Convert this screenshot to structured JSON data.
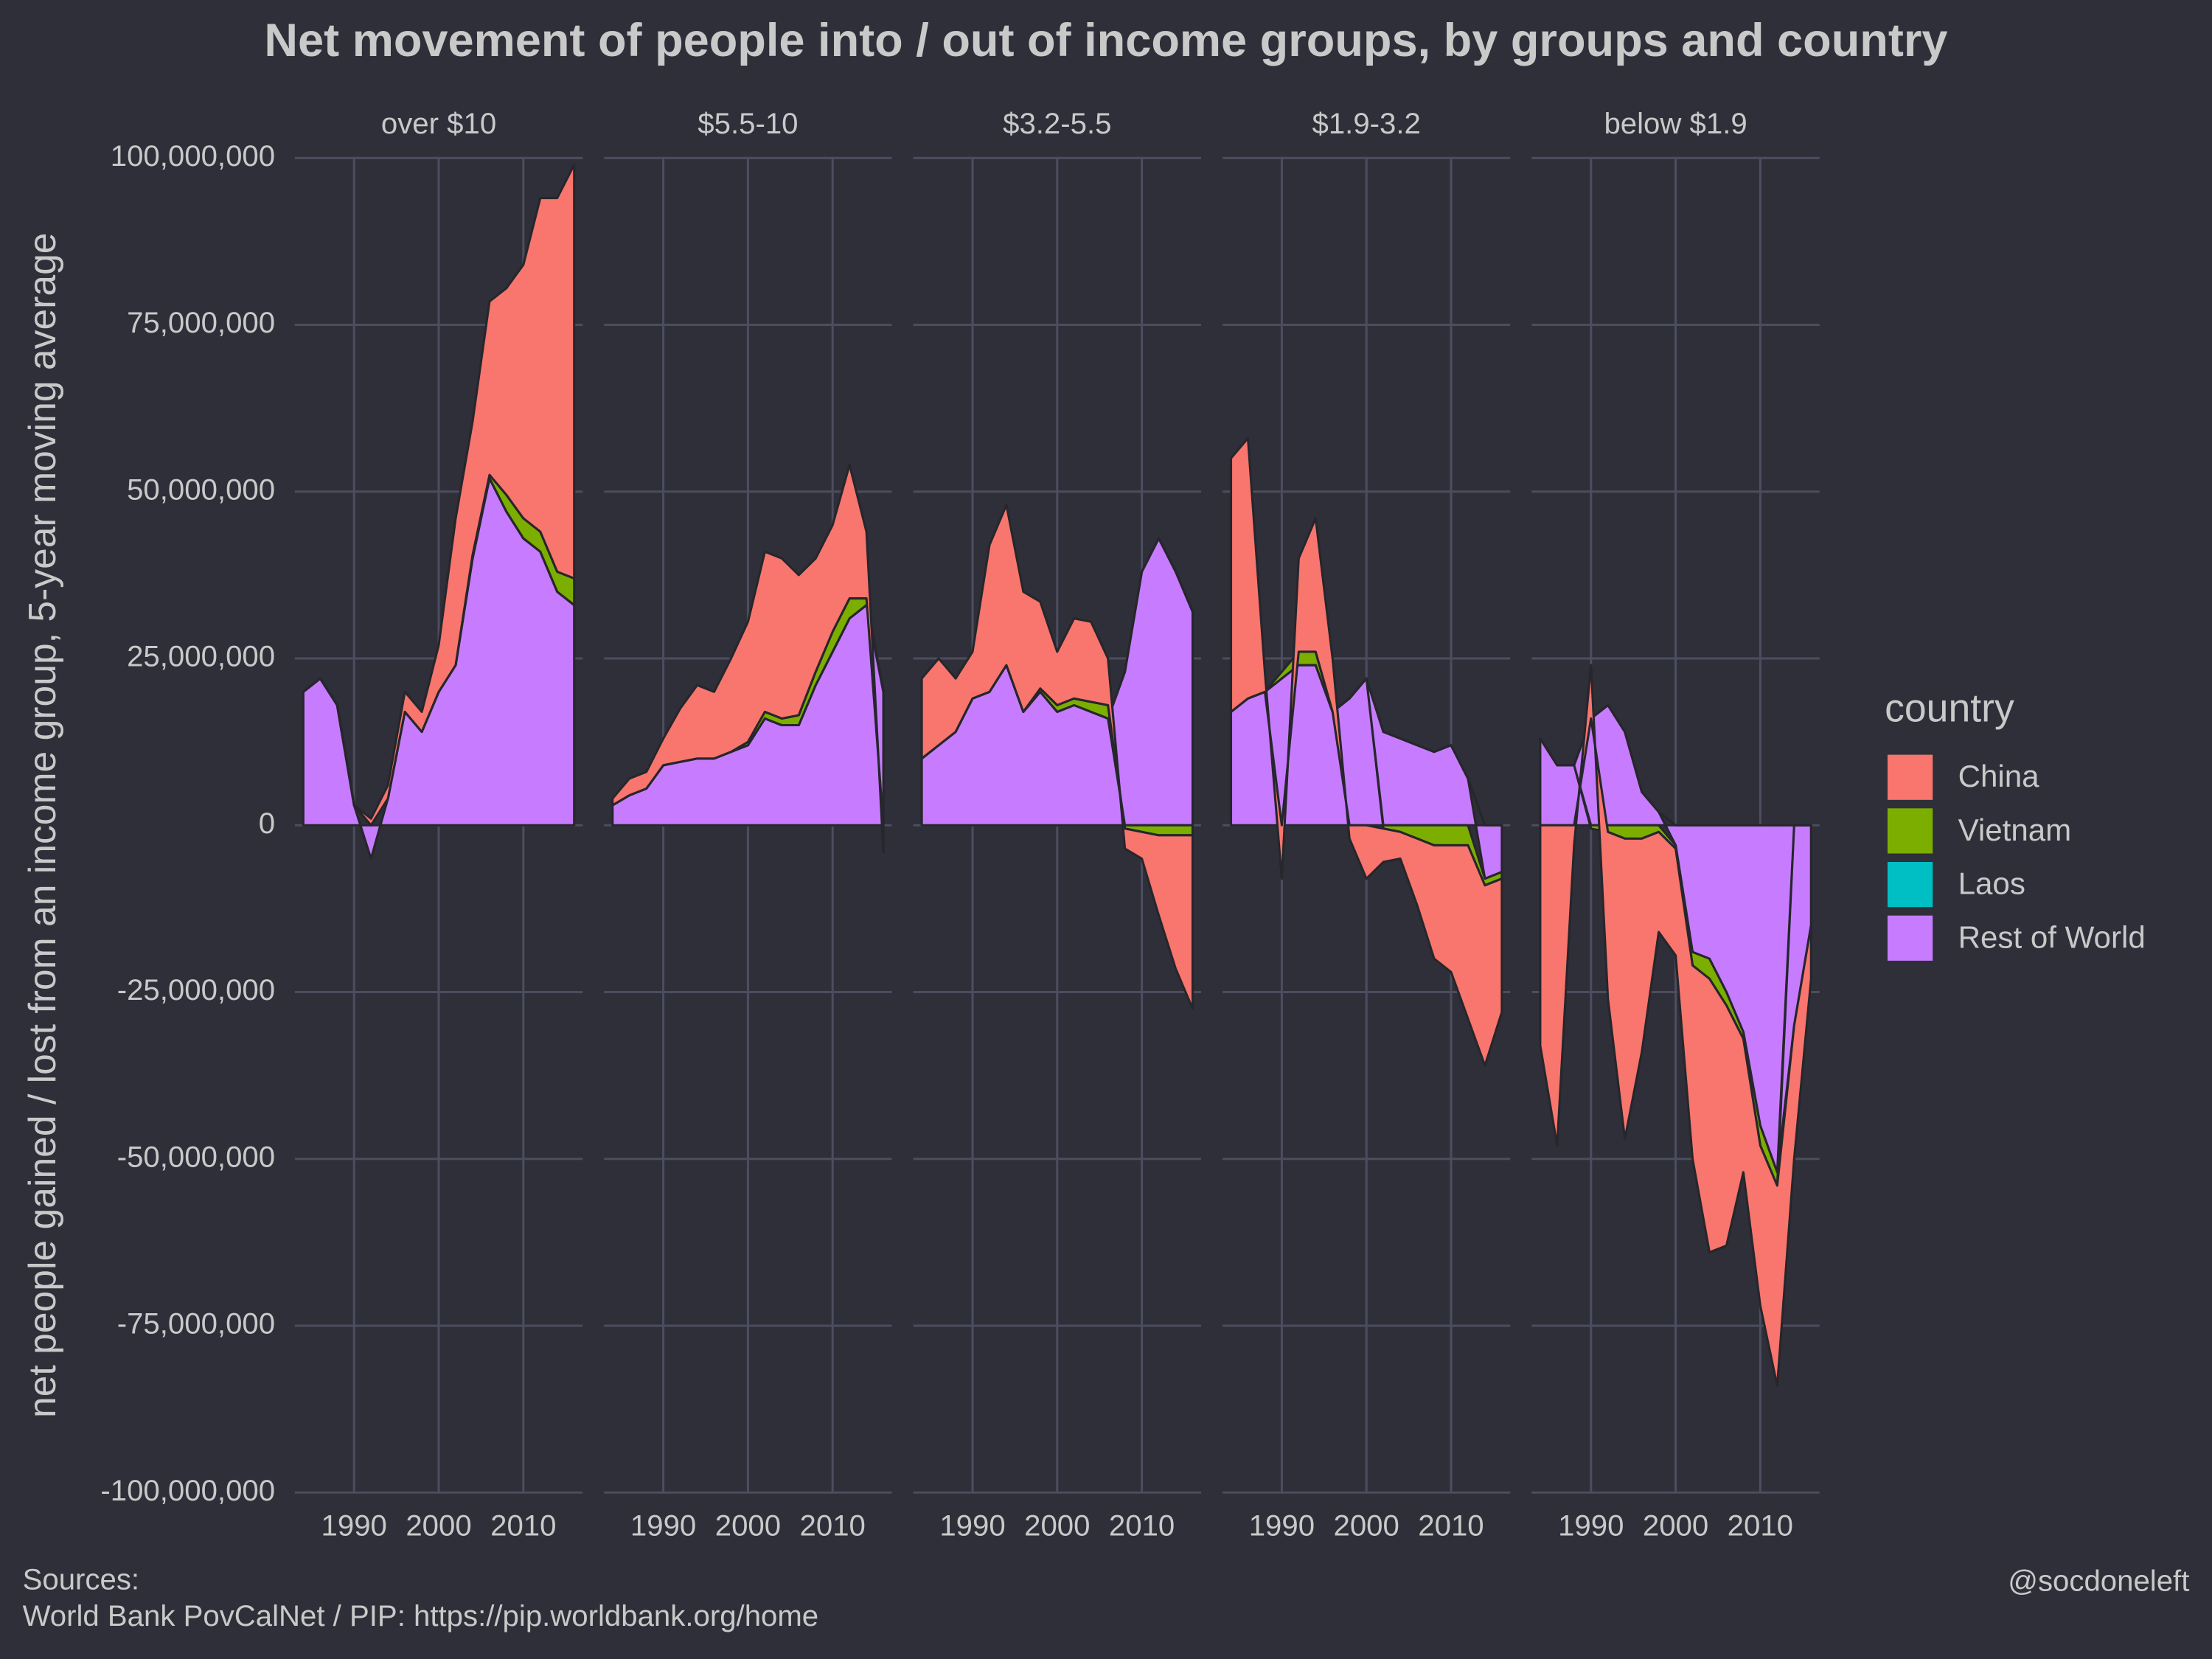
{
  "chart_data": {
    "type": "area",
    "title": "Net movement of people into / out of income groups, by groups and country",
    "y_label": "net people gained / lost from an income group, 5-year moving average",
    "legend_title": "country",
    "sources_heading": "Sources:",
    "sources": "World Bank PovCalNet / PIP: https://pip.worldbank.org/home",
    "credit": "@socdoneleft",
    "xlim": [
      1983,
      2017
    ],
    "xticks": [
      1990,
      2000,
      2010
    ],
    "ylim": [
      -100000000,
      100000000
    ],
    "yticks": [
      {
        "value": -100000000,
        "label": "-100,000,000"
      },
      {
        "value": -75000000,
        "label": "-75,000,000"
      },
      {
        "value": -50000000,
        "label": "-50,000,000"
      },
      {
        "value": -25000000,
        "label": "-25,000,000"
      },
      0,
      {
        "value": 25000000,
        "label": "25,000,000"
      },
      {
        "value": 50000000,
        "label": "50,000,000"
      },
      {
        "value": 75000000,
        "label": "75,000,000"
      },
      {
        "value": 100000000,
        "label": "100,000,000"
      }
    ],
    "grid": true,
    "series": [
      {
        "name": "China",
        "color": "#f8766d"
      },
      {
        "name": "Vietnam",
        "color": "#7cae00"
      },
      {
        "name": "Laos",
        "color": "#00bfc4"
      },
      {
        "name": "Rest of World",
        "color": "#c77cff"
      }
    ],
    "x": [
      1984,
      1986,
      1988,
      1990,
      1992,
      1994,
      1996,
      1998,
      2000,
      2002,
      2004,
      2006,
      2008,
      2010,
      2012,
      2014,
      2016
    ],
    "facets": [
      {
        "title": "over $10",
        "values": [
          [
            0,
            0,
            0,
            0,
            1000000,
            2000000,
            3000000,
            3000000,
            7000000,
            22000000,
            20000000,
            26000000,
            31000000,
            38000000,
            50000000,
            56000000,
            62000000
          ],
          [
            0,
            0,
            0,
            0,
            0,
            0,
            0,
            0,
            0,
            0,
            500000,
            500000,
            2500000,
            3000000,
            3000000,
            3000000,
            4000000
          ],
          [
            0,
            0,
            0,
            0,
            0,
            0,
            0,
            0,
            0,
            0,
            0,
            0,
            0,
            0,
            0,
            0,
            0
          ],
          [
            20000000,
            22000000,
            18000000,
            3000000,
            -5000000,
            4000000,
            17000000,
            14000000,
            20000000,
            24000000,
            40000000,
            52000000,
            47000000,
            43000000,
            41000000,
            35000000,
            33000000
          ]
        ]
      },
      {
        "title": "$5.5-10",
        "values": [
          [
            1000000,
            2500000,
            2500000,
            4000000,
            8000000,
            11000000,
            10000000,
            14000000,
            18000000,
            24000000,
            24000000,
            21000000,
            17000000,
            16000000,
            20000000,
            10000000,
            -4000000
          ],
          [
            0,
            0,
            0,
            0,
            0,
            0,
            0,
            0,
            500000,
            1000000,
            1000000,
            1500000,
            2000000,
            3000000,
            3000000,
            1000000,
            0
          ],
          [
            0,
            0,
            0,
            0,
            0,
            0,
            0,
            0,
            0,
            0,
            0,
            0,
            0,
            0,
            0,
            0,
            0
          ],
          [
            3000000,
            4500000,
            5500000,
            9000000,
            9500000,
            10000000,
            10000000,
            11000000,
            12000000,
            16000000,
            15000000,
            15000000,
            21000000,
            26000000,
            31000000,
            33000000,
            20000000
          ]
        ]
      },
      {
        "title": "$3.2-5.5",
        "values": [
          [
            12000000,
            13000000,
            8000000,
            7000000,
            22000000,
            24000000,
            18000000,
            13000000,
            8000000,
            12000000,
            12000000,
            7000000,
            -3000000,
            -4000000,
            -12000000,
            -20000000,
            -26000000
          ],
          [
            0,
            0,
            0,
            0,
            0,
            0,
            0,
            500000,
            1000000,
            1000000,
            1500000,
            2000000,
            -500000,
            -1000000,
            -1500000,
            -1500000,
            -1500000
          ],
          [
            0,
            0,
            0,
            0,
            0,
            0,
            0,
            0,
            0,
            0,
            0,
            0,
            0,
            0,
            0,
            0,
            0
          ],
          [
            10000000,
            12000000,
            14000000,
            19000000,
            20000000,
            24000000,
            17000000,
            20000000,
            17000000,
            18000000,
            17000000,
            16000000,
            23000000,
            38000000,
            43000000,
            38000000,
            32000000
          ]
        ]
      },
      {
        "title": "$1.9-3.2",
        "values": [
          [
            38000000,
            39000000,
            3000000,
            -8000000,
            14000000,
            20000000,
            8000000,
            -2000000,
            -8000000,
            -5000000,
            -4000000,
            -10000000,
            -17000000,
            -19000000,
            -26000000,
            -27000000,
            -20000000
          ],
          [
            0,
            0,
            0,
            1000000,
            2000000,
            2000000,
            0,
            0,
            0,
            -500000,
            -1000000,
            -2000000,
            -3000000,
            -3000000,
            -3000000,
            -1000000,
            -1000000
          ],
          [
            0,
            0,
            0,
            0,
            0,
            0,
            0,
            0,
            0,
            0,
            0,
            0,
            0,
            0,
            0,
            0,
            0
          ],
          [
            17000000,
            19000000,
            20000000,
            22000000,
            24000000,
            24000000,
            17000000,
            19000000,
            22000000,
            14000000,
            13000000,
            12000000,
            11000000,
            12000000,
            7000000,
            -8000000,
            -7000000
          ]
        ]
      },
      {
        "title": "below $1.9",
        "values": [
          [
            -33000000,
            -48000000,
            -3000000,
            8000000,
            -25000000,
            -45000000,
            -32000000,
            -15000000,
            -16000000,
            -29000000,
            -41000000,
            -36000000,
            -20000000,
            -24000000,
            -30000000,
            -20000000,
            -8000000
          ],
          [
            0,
            0,
            0,
            -500000,
            -1000000,
            -2000000,
            -2000000,
            -1000000,
            -500000,
            -2000000,
            -3000000,
            -2000000,
            -1000000,
            -3000000,
            -2000000,
            0,
            0
          ],
          [
            0,
            0,
            0,
            0,
            0,
            0,
            0,
            0,
            0,
            0,
            0,
            0,
            0,
            0,
            0,
            0,
            0
          ],
          [
            13000000,
            9000000,
            9000000,
            16000000,
            18000000,
            14000000,
            5000000,
            2000000,
            -3000000,
            -19000000,
            -20000000,
            -25000000,
            -31000000,
            -45000000,
            -52000000,
            -30000000,
            -15000000
          ]
        ]
      }
    ]
  }
}
